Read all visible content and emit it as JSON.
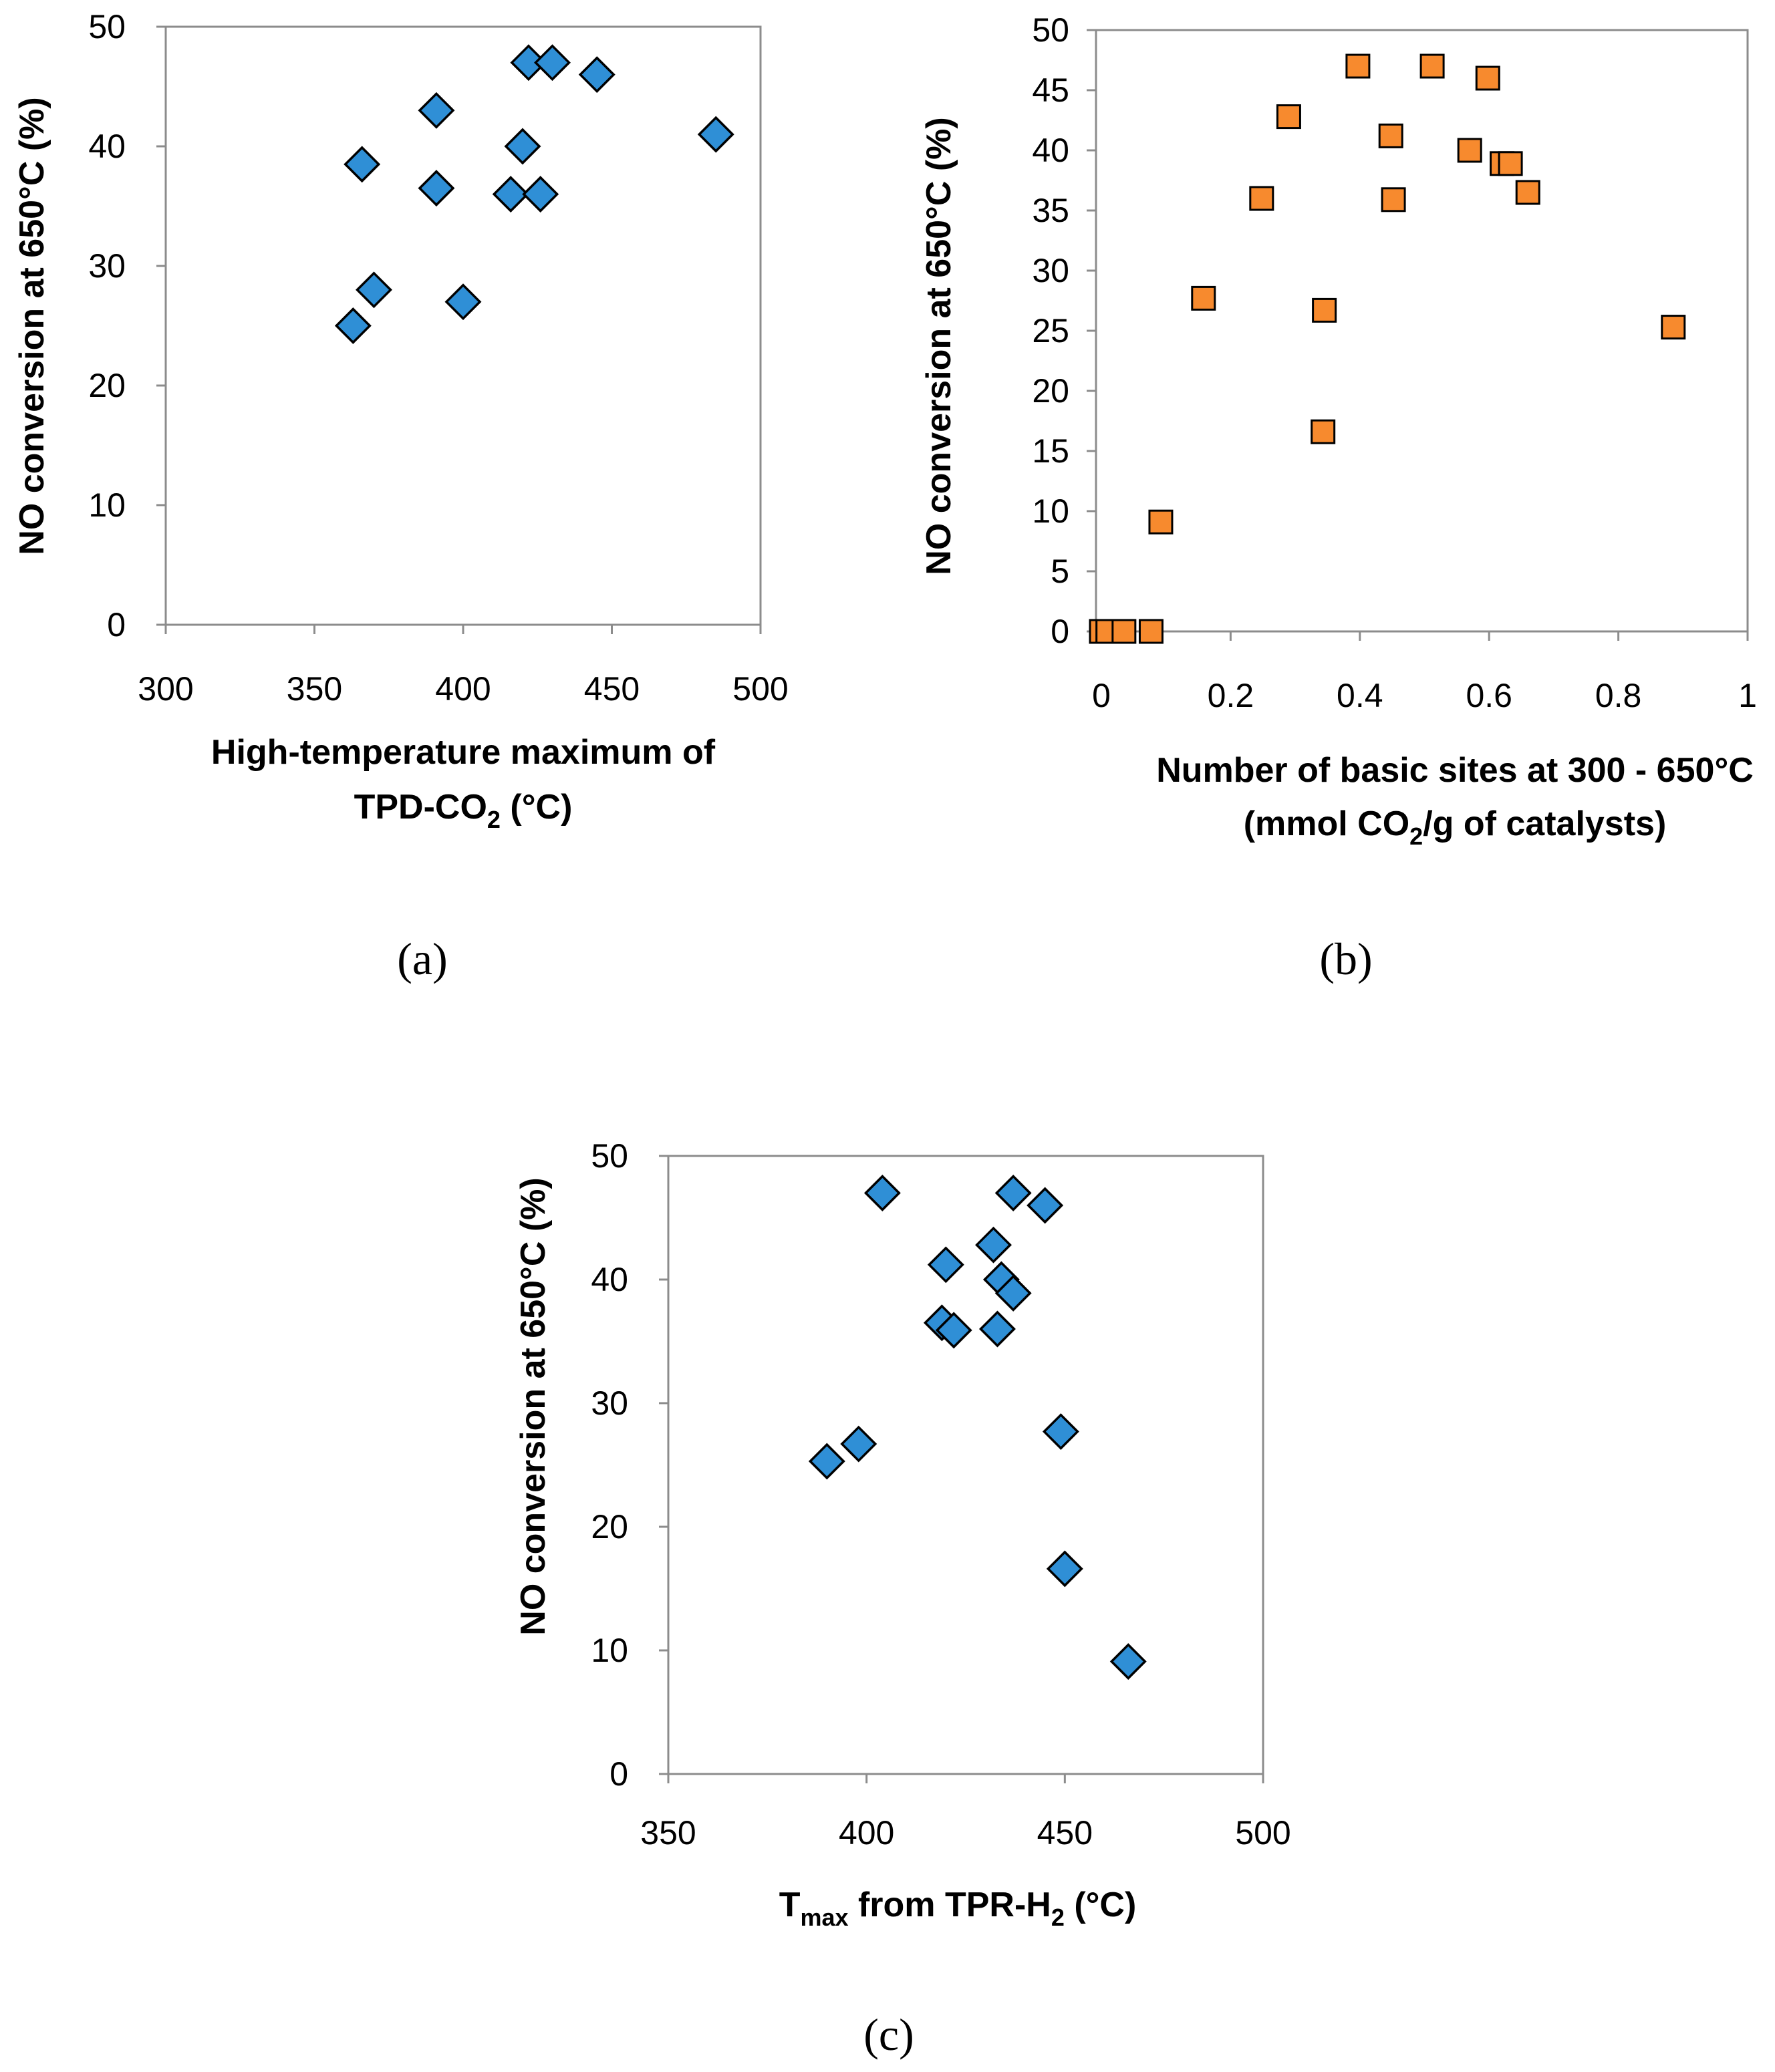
{
  "chart_data": [
    {
      "panel": "a",
      "panel_label": "(a)",
      "type": "scatter",
      "marker": "diamond",
      "color": "#2f8fd6",
      "xlabel_line1": "High-temperature maximum of",
      "xlabel_line2": "TPD-CO",
      "xlabel_line2_sub": "2",
      "xlabel_line2_end": " (°C)",
      "ylabel": "NO conversion at 650°C (%)",
      "xlim": [
        300,
        500
      ],
      "ylim": [
        0,
        50
      ],
      "xticks": [
        "300",
        "350",
        "400",
        "450",
        "500"
      ],
      "yticks": [
        "0",
        "10",
        "20",
        "30",
        "40",
        "50"
      ],
      "points": [
        {
          "x": 363,
          "y": 25
        },
        {
          "x": 366,
          "y": 38.5
        },
        {
          "x": 370,
          "y": 28
        },
        {
          "x": 391,
          "y": 43
        },
        {
          "x": 391,
          "y": 36.5
        },
        {
          "x": 400,
          "y": 27
        },
        {
          "x": 416,
          "y": 36
        },
        {
          "x": 420,
          "y": 40
        },
        {
          "x": 422,
          "y": 47
        },
        {
          "x": 426,
          "y": 36
        },
        {
          "x": 430,
          "y": 47
        },
        {
          "x": 445,
          "y": 46
        },
        {
          "x": 485,
          "y": 41
        }
      ]
    },
    {
      "panel": "b",
      "panel_label": "(b)",
      "type": "scatter",
      "marker": "square",
      "color": "#f78a2e",
      "xlabel_line1": "Number of basic sites at 300 - 650°C",
      "xlabel_line2": "(mmol CO",
      "xlabel_line2_sub": "2",
      "xlabel_line2_end": "/g of catalysts)",
      "ylabel": "NO conversion at 650°C (%)",
      "xlim": [
        0,
        1
      ],
      "ylim": [
        0,
        50
      ],
      "xticks": [
        "0",
        "0.2",
        "0.4",
        "0.6",
        "0.8",
        "1"
      ],
      "yticks": [
        "0",
        "5",
        "10",
        "15",
        "20",
        "25",
        "30",
        "35",
        "40",
        "45",
        "50"
      ],
      "points": [
        {
          "x": 0.0,
          "y": 0
        },
        {
          "x": 0.01,
          "y": 0
        },
        {
          "x": 0.035,
          "y": 0
        },
        {
          "x": 0.077,
          "y": 0
        },
        {
          "x": 0.092,
          "y": 9.1
        },
        {
          "x": 0.158,
          "y": 27.7
        },
        {
          "x": 0.248,
          "y": 36
        },
        {
          "x": 0.29,
          "y": 42.8
        },
        {
          "x": 0.343,
          "y": 16.6
        },
        {
          "x": 0.345,
          "y": 26.7
        },
        {
          "x": 0.397,
          "y": 47
        },
        {
          "x": 0.448,
          "y": 41.2
        },
        {
          "x": 0.452,
          "y": 35.9
        },
        {
          "x": 0.512,
          "y": 47
        },
        {
          "x": 0.57,
          "y": 40
        },
        {
          "x": 0.598,
          "y": 46
        },
        {
          "x": 0.62,
          "y": 38.9
        },
        {
          "x": 0.633,
          "y": 38.9
        },
        {
          "x": 0.66,
          "y": 36.5
        },
        {
          "x": 0.885,
          "y": 25.3
        }
      ]
    },
    {
      "panel": "c",
      "panel_label": "(c)",
      "type": "scatter",
      "marker": "diamond",
      "color": "#2f8fd6",
      "xlabel_pre": "T",
      "xlabel_pre_sub": "max",
      "xlabel_mid": " from TPR-H",
      "xlabel_mid_sub": "2",
      "xlabel_end": " (°C)",
      "ylabel": "NO conversion at 650°C (%)",
      "xlim": [
        350,
        500
      ],
      "ylim": [
        0,
        50
      ],
      "xticks": [
        "350",
        "400",
        "450",
        "500"
      ],
      "yticks": [
        "0",
        "10",
        "20",
        "30",
        "40",
        "50"
      ],
      "points": [
        {
          "x": 390,
          "y": 25.3
        },
        {
          "x": 398,
          "y": 26.7
        },
        {
          "x": 404,
          "y": 47
        },
        {
          "x": 419,
          "y": 36.5
        },
        {
          "x": 420,
          "y": 41.2
        },
        {
          "x": 422,
          "y": 35.9
        },
        {
          "x": 432,
          "y": 42.8
        },
        {
          "x": 433,
          "y": 36
        },
        {
          "x": 434,
          "y": 40
        },
        {
          "x": 437,
          "y": 38.9
        },
        {
          "x": 437,
          "y": 47
        },
        {
          "x": 445,
          "y": 46
        },
        {
          "x": 449,
          "y": 27.7
        },
        {
          "x": 450,
          "y": 16.6
        },
        {
          "x": 466,
          "y": 9.1
        }
      ]
    }
  ]
}
